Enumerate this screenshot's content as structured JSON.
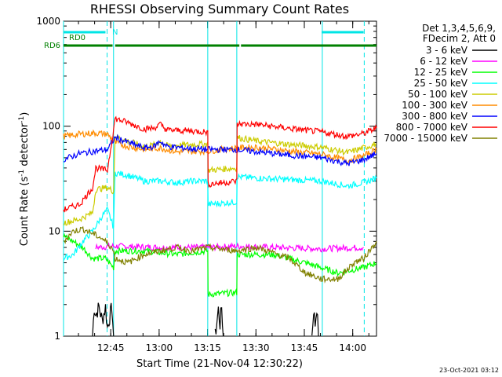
{
  "chart_data": {
    "type": "line",
    "title": "RHESSI Observing Summary Count Rates",
    "xlabel": "Start Time (21-Nov-04 12:30:22)",
    "ylabel_main": "Count Rate (s",
    "ylabel_sup1": "-1",
    "ylabel_mid": " detector",
    "ylabel_sup2": "-1",
    "ylabel_end": ")",
    "yscale": "log",
    "ylim": [
      1,
      1000
    ],
    "xlim_minutes": [
      0,
      97
    ],
    "xticks": [
      {
        "label": "12:45",
        "minute": 14.63
      },
      {
        "label": "13:00",
        "minute": 29.63
      },
      {
        "label": "13:15",
        "minute": 44.63
      },
      {
        "label": "13:30",
        "minute": 59.63
      },
      {
        "label": "13:45",
        "minute": 74.63
      },
      {
        "label": "14:00",
        "minute": 89.63
      }
    ],
    "yticks": [
      {
        "label": "1",
        "value": 1
      },
      {
        "label": "10",
        "value": 10
      },
      {
        "label": "100",
        "value": 100
      },
      {
        "label": "1000",
        "value": 1000
      }
    ],
    "legend_header": [
      "Det 1,3,4,5,6,9,",
      "FDecim 2, Att 0"
    ],
    "legend_placement": "right",
    "footer_date": "23-Oct-2021 03:12",
    "flag_labels": {
      "rd0": "RD0",
      "rd6": "RD6",
      "n": "N"
    },
    "flags": [
      {
        "name": "RD0",
        "color": "#00e5e5",
        "segments": [
          [
            0,
            13
          ],
          [
            80,
            93
          ]
        ]
      },
      {
        "name": "RD6",
        "color": "#008000",
        "segments": [
          [
            0,
            15.2
          ],
          [
            16,
            44.5
          ],
          [
            44.5,
            54.5
          ],
          [
            55,
            97
          ]
        ]
      }
    ],
    "markers": [
      {
        "minute": 0,
        "style": "solid",
        "color": "#00e5e5"
      },
      {
        "minute": 13.5,
        "style": "dashed",
        "color": "#00e5e5"
      },
      {
        "minute": 15.5,
        "style": "solid",
        "color": "#00e5e5"
      },
      {
        "minute": 44.7,
        "style": "solid",
        "color": "#00e5e5"
      },
      {
        "minute": 53.7,
        "style": "solid",
        "color": "#00e5e5"
      },
      {
        "minute": 80.2,
        "style": "solid",
        "color": "#00e5e5"
      },
      {
        "minute": 93.2,
        "style": "dashed",
        "color": "#00e5e5"
      }
    ],
    "series": [
      {
        "name": "3 - 6 keV",
        "color": "#000000",
        "points": [
          [
            9,
            1
          ],
          [
            9.5,
            1.9
          ],
          [
            10,
            1.6
          ],
          [
            11,
            1.9
          ],
          [
            12,
            1.4
          ],
          [
            13,
            1.9
          ],
          [
            13.6,
            1.2
          ],
          [
            15,
            1.9
          ],
          [
            15.5,
            1
          ]
        ],
        "points2": [
          [
            47,
            1
          ],
          [
            48,
            1.8
          ],
          [
            48.5,
            1.3
          ],
          [
            49,
            1.9
          ],
          [
            49.5,
            1
          ]
        ],
        "points3": [
          [
            77,
            1
          ],
          [
            77.5,
            1.8
          ],
          [
            78,
            1.3
          ],
          [
            78.5,
            1.9
          ],
          [
            79,
            1
          ]
        ]
      },
      {
        "name": "6 - 12 keV",
        "color": "#ff00ff",
        "points": [
          [
            10,
            7.0
          ],
          [
            15.5,
            7.2
          ],
          [
            30,
            7.0
          ],
          [
            44.7,
            7.0
          ],
          [
            53.7,
            7.2
          ],
          [
            65,
            7.0
          ],
          [
            80.2,
            6.8
          ],
          [
            93,
            7.0
          ]
        ]
      },
      {
        "name": "12 - 25 keV",
        "color": "#00ff00",
        "points": [
          [
            0,
            9
          ],
          [
            3,
            8
          ],
          [
            6,
            7
          ],
          [
            9,
            5.5
          ],
          [
            13,
            5.5
          ],
          [
            15.5,
            4.5
          ],
          [
            16,
            6.5
          ],
          [
            25,
            6.5
          ],
          [
            35,
            6
          ],
          [
            44.7,
            6.5
          ],
          [
            44.8,
            2.5
          ],
          [
            53.7,
            2.6
          ],
          [
            53.8,
            6
          ],
          [
            65,
            6
          ],
          [
            75,
            5
          ],
          [
            85,
            4
          ],
          [
            93,
            4.5
          ],
          [
            97,
            5
          ]
        ]
      },
      {
        "name": "25 - 50 keV",
        "color": "#00ffff",
        "points": [
          [
            0,
            5.5
          ],
          [
            3,
            6
          ],
          [
            6,
            8
          ],
          [
            9,
            10
          ],
          [
            12,
            14
          ],
          [
            13.6,
            16
          ],
          [
            15.5,
            11
          ],
          [
            16,
            36
          ],
          [
            20,
            34
          ],
          [
            25,
            30
          ],
          [
            30,
            30
          ],
          [
            35,
            29
          ],
          [
            40,
            30
          ],
          [
            44.7,
            30
          ],
          [
            44.8,
            18
          ],
          [
            53.7,
            19
          ],
          [
            53.8,
            33
          ],
          [
            60,
            32
          ],
          [
            70,
            31
          ],
          [
            80,
            30
          ],
          [
            88,
            27
          ],
          [
            93,
            29
          ],
          [
            97,
            32
          ]
        ]
      },
      {
        "name": "50 - 100 keV",
        "color": "#cccc00",
        "points": [
          [
            0,
            12
          ],
          [
            5,
            13
          ],
          [
            9,
            15
          ],
          [
            10,
            25
          ],
          [
            13.6,
            26
          ],
          [
            15.5,
            24
          ],
          [
            16,
            80
          ],
          [
            20,
            72
          ],
          [
            25,
            64
          ],
          [
            28,
            66
          ],
          [
            30,
            72
          ],
          [
            32,
            65
          ],
          [
            44.7,
            68
          ],
          [
            44.8,
            38
          ],
          [
            53.7,
            40
          ],
          [
            53.8,
            78
          ],
          [
            60,
            72
          ],
          [
            70,
            67
          ],
          [
            80,
            63
          ],
          [
            88,
            56
          ],
          [
            93,
            62
          ],
          [
            97,
            68
          ]
        ]
      },
      {
        "name": "100 - 300 keV",
        "color": "#ff8c00",
        "points": [
          [
            0,
            80
          ],
          [
            5,
            84
          ],
          [
            10,
            86
          ],
          [
            13.6,
            84
          ],
          [
            16,
            70
          ],
          [
            20,
            64
          ],
          [
            25,
            60
          ],
          [
            30,
            62
          ],
          [
            35,
            57
          ],
          [
            44.7,
            58
          ],
          [
            53.7,
            62
          ],
          [
            60,
            63
          ],
          [
            70,
            58
          ],
          [
            80,
            54
          ],
          [
            88,
            47
          ],
          [
            93,
            52
          ],
          [
            97,
            60
          ]
        ]
      },
      {
        "name": "300 - 800 keV",
        "color": "#0000ff",
        "points": [
          [
            0,
            48
          ],
          [
            5,
            55
          ],
          [
            10,
            58
          ],
          [
            13.6,
            60
          ],
          [
            16,
            78
          ],
          [
            20,
            70
          ],
          [
            25,
            62
          ],
          [
            28,
            64
          ],
          [
            30,
            72
          ],
          [
            32,
            64
          ],
          [
            40,
            61
          ],
          [
            44.7,
            60
          ],
          [
            53.7,
            60
          ],
          [
            60,
            57
          ],
          [
            70,
            53
          ],
          [
            80,
            50
          ],
          [
            88,
            44
          ],
          [
            93,
            48
          ],
          [
            97,
            55
          ]
        ]
      },
      {
        "name": "800 - 7000 keV",
        "color": "#ff0000",
        "points": [
          [
            0,
            16
          ],
          [
            5,
            18
          ],
          [
            9,
            26
          ],
          [
            10,
            40
          ],
          [
            13.6,
            38
          ],
          [
            16,
            118
          ],
          [
            20,
            108
          ],
          [
            25,
            94
          ],
          [
            28,
            96
          ],
          [
            30,
            104
          ],
          [
            32,
            92
          ],
          [
            40,
            90
          ],
          [
            44.7,
            88
          ],
          [
            44.8,
            28
          ],
          [
            53.7,
            30
          ],
          [
            53.8,
            105
          ],
          [
            60,
            104
          ],
          [
            70,
            95
          ],
          [
            80,
            88
          ],
          [
            88,
            80
          ],
          [
            93,
            85
          ],
          [
            97,
            96
          ]
        ]
      },
      {
        "name": "7000 - 15000 keV",
        "color": "#808000",
        "points": [
          [
            0,
            8
          ],
          [
            3,
            10
          ],
          [
            6,
            10.5
          ],
          [
            9,
            9.5
          ],
          [
            12,
            8.5
          ],
          [
            15,
            7
          ],
          [
            16,
            5.5
          ],
          [
            20,
            5
          ],
          [
            25,
            6
          ],
          [
            30,
            6.5
          ],
          [
            35,
            7
          ],
          [
            40,
            6.5
          ],
          [
            44.7,
            7
          ],
          [
            53.7,
            6.5
          ],
          [
            60,
            7
          ],
          [
            70,
            5.5
          ],
          [
            75,
            4
          ],
          [
            80,
            3.5
          ],
          [
            85,
            3.5
          ],
          [
            90,
            5
          ],
          [
            93,
            5.5
          ],
          [
            97,
            8
          ]
        ]
      }
    ]
  }
}
